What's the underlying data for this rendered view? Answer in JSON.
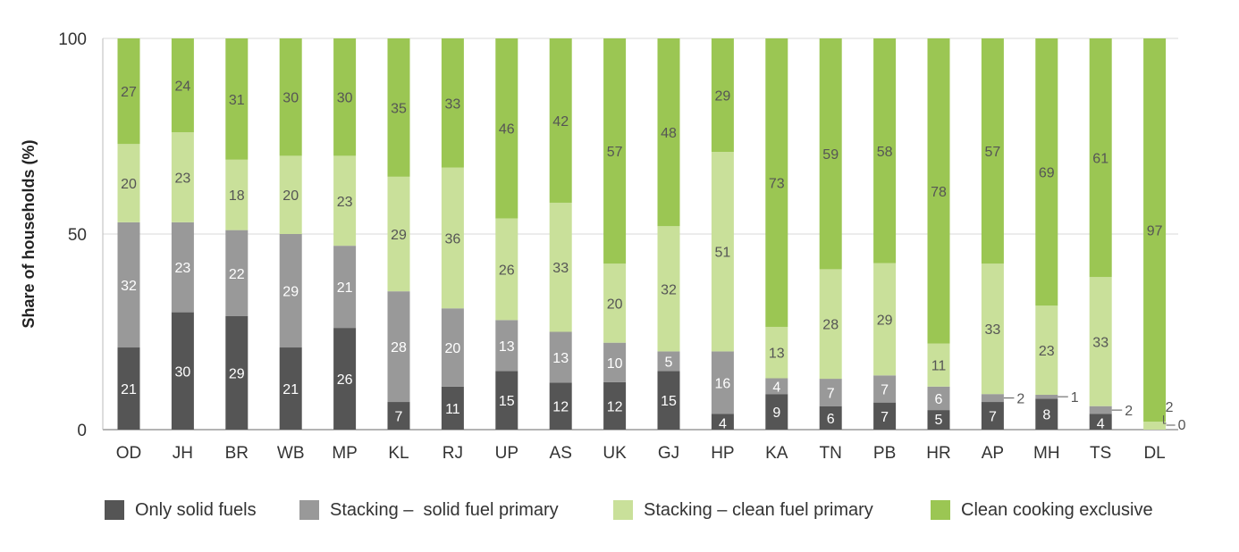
{
  "chart_data": {
    "type": "bar",
    "stacked": true,
    "ylabel": "Share of households (%)",
    "ylim": [
      0,
      100
    ],
    "yticks": [
      0,
      50,
      100
    ],
    "grid": true,
    "legend_position": "bottom",
    "categories": [
      "OD",
      "JH",
      "BR",
      "WB",
      "MP",
      "KL",
      "RJ",
      "UP",
      "AS",
      "UK",
      "GJ",
      "HP",
      "KA",
      "TN",
      "PB",
      "HR",
      "AP",
      "MH",
      "TS",
      "DL"
    ],
    "series": [
      {
        "name": "Only solid fuels",
        "color": "#555555",
        "values": [
          21,
          30,
          29,
          21,
          26,
          7,
          11,
          15,
          12,
          12,
          15,
          4,
          9,
          6,
          7,
          5,
          7,
          8,
          4,
          0
        ]
      },
      {
        "name": "Stacking –  solid fuel primary",
        "color": "#999999",
        "values": [
          32,
          23,
          22,
          29,
          21,
          28,
          20,
          13,
          13,
          10,
          5,
          16,
          4,
          7,
          7,
          6,
          2,
          1,
          2,
          0
        ]
      },
      {
        "name": "Stacking – clean fuel primary",
        "color": "#c9e09a",
        "values": [
          20,
          23,
          18,
          20,
          23,
          29,
          36,
          26,
          33,
          20,
          32,
          51,
          13,
          28,
          29,
          11,
          33,
          23,
          33,
          2
        ]
      },
      {
        "name": "Clean cooking exclusive",
        "color": "#9bc653",
        "values": [
          27,
          24,
          31,
          30,
          30,
          35,
          33,
          46,
          42,
          57,
          48,
          29,
          73,
          59,
          58,
          78,
          57,
          69,
          61,
          97
        ]
      }
    ]
  }
}
